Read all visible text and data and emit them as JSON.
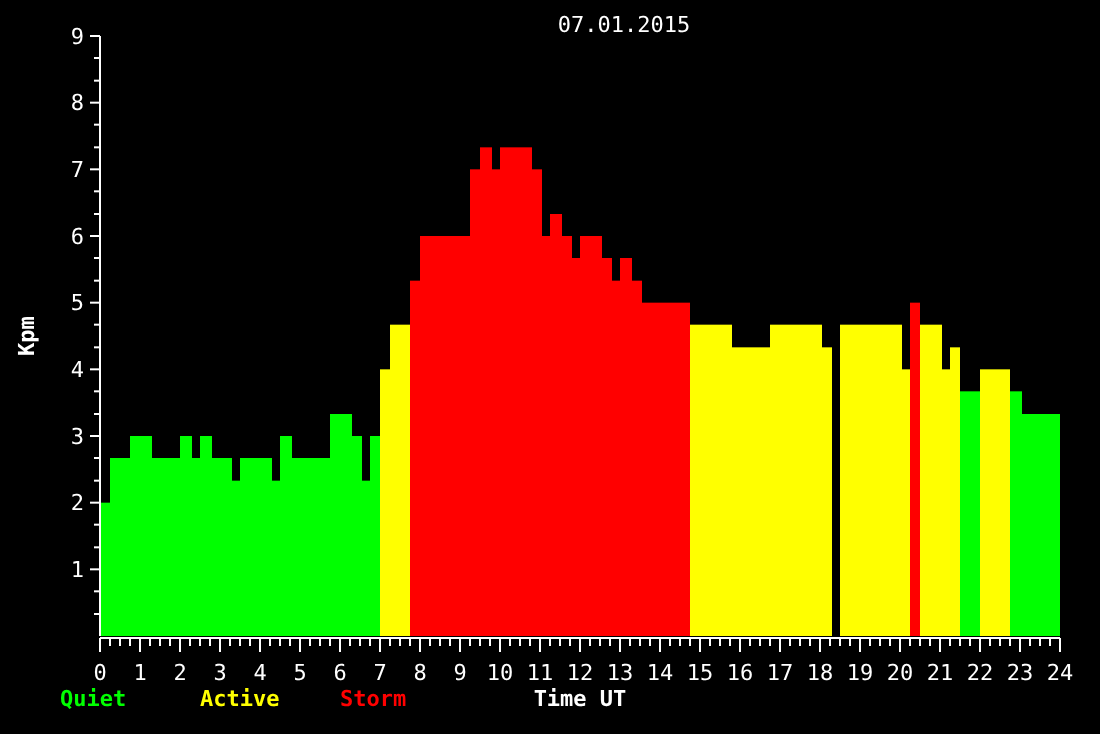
{
  "chart_data": {
    "type": "histogram",
    "title": "07.01.2015",
    "xlabel": "Time UT",
    "ylabel": "Kpm",
    "bins": [
      0,
      0.25,
      0.75,
      1.3,
      2,
      2.3,
      2.5,
      2.8,
      3.3,
      3.5,
      4.3,
      4.5,
      4.8,
      5.75,
      6.3,
      6.55,
      6.75,
      7,
      7.25,
      7.75,
      8,
      9.25,
      9.5,
      9.8,
      10,
      10.8,
      11.05,
      11.25,
      11.55,
      11.8,
      12,
      12.55,
      12.8,
      13,
      13.3,
      13.55,
      14.75,
      15.8,
      16.75,
      18.05,
      18.3,
      18.5,
      20.05,
      20.25,
      20.5,
      21.05,
      21.25,
      21.5,
      22,
      22.75,
      23.05,
      24
    ],
    "series": [
      {
        "name": "Quiet",
        "color": "#00ff00",
        "values": [
          2,
          2.67,
          3,
          2.67,
          3,
          2.67,
          3,
          2.67,
          2.33,
          2.67,
          2.33,
          3,
          2.67,
          3.33,
          3,
          2.33,
          3,
          null,
          null,
          null,
          null,
          null,
          null,
          null,
          null,
          null,
          null,
          null,
          null,
          null,
          null,
          null,
          null,
          null,
          null,
          null,
          null,
          null,
          null,
          null,
          null,
          null,
          null,
          null,
          null,
          null,
          null,
          3.67,
          null,
          3.67,
          3.33
        ]
      },
      {
        "name": "Active",
        "color": "#ffff00",
        "values": [
          null,
          null,
          null,
          null,
          null,
          null,
          null,
          null,
          null,
          null,
          null,
          null,
          null,
          null,
          null,
          null,
          null,
          4,
          4.67,
          null,
          null,
          null,
          null,
          null,
          null,
          null,
          null,
          null,
          null,
          null,
          null,
          null,
          null,
          null,
          null,
          null,
          4.67,
          4.33,
          4.67,
          4.33,
          null,
          4.67,
          4,
          null,
          4.67,
          4,
          4.33,
          null,
          4,
          null,
          null
        ]
      },
      {
        "name": "Storm",
        "color": "#ff0000",
        "values": [
          null,
          null,
          null,
          null,
          null,
          null,
          null,
          null,
          null,
          null,
          null,
          null,
          null,
          null,
          null,
          null,
          null,
          null,
          null,
          5.33,
          6,
          7,
          7.33,
          7,
          7.33,
          7,
          6,
          6.33,
          6,
          5.67,
          6,
          5.67,
          5.33,
          5.67,
          5.33,
          5,
          null,
          null,
          null,
          null,
          null,
          null,
          null,
          5,
          null,
          null,
          null,
          null,
          null,
          null,
          null
        ]
      }
    ],
    "xlim": [
      0,
      24
    ],
    "xticks": [
      0,
      {
        "value": 0.25,
        "label": null
      },
      {
        "value": 0.5,
        "label": null
      },
      {
        "value": 0.75,
        "label": null
      },
      1,
      {
        "value": 1.25,
        "label": null
      },
      {
        "value": 1.5,
        "label": null
      },
      {
        "value": 1.75,
        "label": null
      },
      2,
      {
        "value": 2.25,
        "label": null
      },
      {
        "value": 2.5,
        "label": null
      },
      {
        "value": 2.75,
        "label": null
      },
      3,
      {
        "value": 3.25,
        "label": null
      },
      {
        "value": 3.5,
        "label": null
      },
      {
        "value": 3.75,
        "label": null
      },
      4,
      {
        "value": 4.25,
        "label": null
      },
      {
        "value": 4.5,
        "label": null
      },
      {
        "value": 4.75,
        "label": null
      },
      5,
      {
        "value": 5.25,
        "label": null
      },
      {
        "value": 5.5,
        "label": null
      },
      {
        "value": 5.75,
        "label": null
      },
      6,
      {
        "value": 6.25,
        "label": null
      },
      {
        "value": 6.5,
        "label": null
      },
      {
        "value": 6.75,
        "label": null
      },
      7,
      {
        "value": 7.25,
        "label": null
      },
      {
        "value": 7.5,
        "label": null
      },
      {
        "value": 7.75,
        "label": null
      },
      8,
      {
        "value": 8.25,
        "label": null
      },
      {
        "value": 8.5,
        "label": null
      },
      {
        "value": 8.75,
        "label": null
      },
      9,
      {
        "value": 9.25,
        "label": null
      },
      {
        "value": 9.5,
        "label": null
      },
      {
        "value": 9.75,
        "label": null
      },
      10,
      {
        "value": 10.25,
        "label": null
      },
      {
        "value": 10.5,
        "label": null
      },
      {
        "value": 10.75,
        "label": null
      },
      11,
      {
        "value": 11.25,
        "label": null
      },
      {
        "value": 11.5,
        "label": null
      },
      {
        "value": 11.75,
        "label": null
      },
      12,
      {
        "value": 12.25,
        "label": null
      },
      {
        "value": 12.5,
        "label": null
      },
      {
        "value": 12.75,
        "label": null
      },
      13,
      {
        "value": 13.25,
        "label": null
      },
      {
        "value": 13.5,
        "label": null
      },
      {
        "value": 13.75,
        "label": null
      },
      14,
      {
        "value": 14.25,
        "label": null
      },
      {
        "value": 14.5,
        "label": null
      },
      {
        "value": 14.75,
        "label": null
      },
      15,
      {
        "value": 15.25,
        "label": null
      },
      {
        "value": 15.5,
        "label": null
      },
      {
        "value": 15.75,
        "label": null
      },
      16,
      {
        "value": 16.25,
        "label": null
      },
      {
        "value": 16.5,
        "label": null
      },
      {
        "value": 16.75,
        "label": null
      },
      17,
      {
        "value": 17.25,
        "label": null
      },
      {
        "value": 17.5,
        "label": null
      },
      {
        "value": 17.75,
        "label": null
      },
      18,
      {
        "value": 18.25,
        "label": null
      },
      {
        "value": 18.5,
        "label": null
      },
      {
        "value": 18.75,
        "label": null
      },
      19,
      {
        "value": 19.25,
        "label": null
      },
      {
        "value": 19.5,
        "label": null
      },
      {
        "value": 19.75,
        "label": null
      },
      20,
      {
        "value": 20.25,
        "label": null
      },
      {
        "value": 20.5,
        "label": null
      },
      {
        "value": 20.75,
        "label": null
      },
      21,
      {
        "value": 21.25,
        "label": null
      },
      {
        "value": 21.5,
        "label": null
      },
      {
        "value": 21.75,
        "label": null
      },
      22,
      {
        "value": 22.25,
        "label": null
      },
      {
        "value": 22.5,
        "label": null
      },
      {
        "value": 22.75,
        "label": null
      },
      23,
      {
        "value": 23.25,
        "label": null
      },
      {
        "value": 23.5,
        "label": null
      },
      {
        "value": 23.75,
        "label": null
      },
      24
    ],
    "ylim": [
      0,
      9
    ],
    "yticks": [
      {
        "value": 0.33,
        "label": null
      },
      {
        "value": 0.67,
        "label": null
      },
      1,
      {
        "value": 1.33,
        "label": null
      },
      {
        "value": 1.67,
        "label": null
      },
      2,
      {
        "value": 2.33,
        "label": null
      },
      {
        "value": 2.67,
        "label": null
      },
      3,
      {
        "value": 3.33,
        "label": null
      },
      {
        "value": 3.67,
        "label": null
      },
      4,
      {
        "value": 4.33,
        "label": null
      },
      {
        "value": 4.67,
        "label": null
      },
      5,
      {
        "value": 5.33,
        "label": null
      },
      {
        "value": 5.67,
        "label": null
      },
      6,
      {
        "value": 6.33,
        "label": null
      },
      {
        "value": 6.67,
        "label": null
      },
      7,
      {
        "value": 7.33,
        "label": null
      },
      {
        "value": 7.67,
        "label": null
      },
      8,
      {
        "value": 8.33,
        "label": null
      },
      {
        "value": 8.67,
        "label": null
      },
      9
    ],
    "legend": "bottom left",
    "grid": false
  }
}
